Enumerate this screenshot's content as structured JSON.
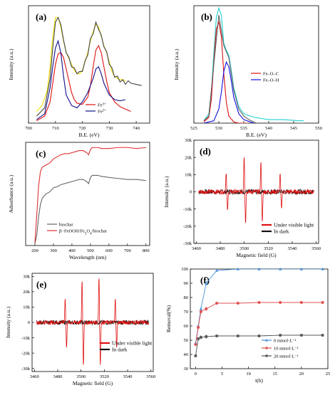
{
  "figure": {
    "background": "#ffffff"
  },
  "chart_data": [
    {
      "id": "a",
      "panel_label": "(a)",
      "type": "line",
      "xlabel": "B.E. (eV)",
      "ylabel": "Intensity (a.u.)",
      "xlim": [
        700,
        745
      ],
      "xticks": [
        700,
        710,
        720,
        730,
        740
      ],
      "ylim": [
        0,
        1
      ],
      "show_yticks": false,
      "legend": {
        "position": "bottom-right",
        "entries": [
          "Fe3+",
          "Fe2+"
        ]
      },
      "series": [
        {
          "key": "envelope",
          "color": "#f0e000",
          "x": [
            703,
            705,
            707,
            708,
            709,
            710,
            711,
            712,
            713,
            714,
            715,
            716,
            717,
            718,
            719,
            720,
            721,
            722,
            723,
            724,
            725,
            726,
            727,
            728,
            729,
            730,
            731,
            732,
            733,
            734,
            735,
            736
          ],
          "y": [
            0.1,
            0.15,
            0.28,
            0.48,
            0.74,
            0.9,
            0.9,
            0.82,
            0.7,
            0.6,
            0.55,
            0.5,
            0.45,
            0.42,
            0.42,
            0.45,
            0.52,
            0.6,
            0.7,
            0.78,
            0.84,
            0.82,
            0.74,
            0.66,
            0.6,
            0.52,
            0.44,
            0.4,
            0.38,
            0.37,
            0.37,
            0.36
          ]
        },
        {
          "name": "Fe3+",
          "color": "#e01010",
          "x": [
            703,
            706,
            708,
            709,
            710,
            711,
            712,
            713,
            714,
            715,
            716,
            717,
            718,
            720,
            722,
            723,
            724,
            725,
            726,
            727,
            728,
            729,
            730,
            732,
            734,
            736,
            738
          ],
          "y": [
            0.02,
            0.06,
            0.18,
            0.34,
            0.5,
            0.59,
            0.6,
            0.56,
            0.46,
            0.36,
            0.26,
            0.2,
            0.17,
            0.16,
            0.22,
            0.32,
            0.48,
            0.62,
            0.66,
            0.6,
            0.48,
            0.36,
            0.26,
            0.18,
            0.14,
            0.12,
            0.1
          ]
        },
        {
          "name": "Fe2+",
          "color": "#10108a",
          "x": [
            703,
            706,
            708,
            709,
            710,
            711,
            712,
            713,
            714,
            716,
            718,
            720,
            722,
            724,
            725,
            726,
            727,
            728,
            730,
            732,
            734,
            736
          ],
          "y": [
            0.03,
            0.08,
            0.3,
            0.48,
            0.64,
            0.7,
            0.6,
            0.4,
            0.24,
            0.15,
            0.13,
            0.18,
            0.26,
            0.38,
            0.46,
            0.48,
            0.42,
            0.34,
            0.24,
            0.2,
            0.19,
            0.2
          ]
        },
        {
          "key": "raw",
          "color": "#444444",
          "x": [
            703,
            706,
            708,
            709,
            710,
            711,
            712,
            713,
            714,
            715,
            716,
            717,
            718,
            719,
            720,
            721,
            722,
            723,
            724,
            725,
            726,
            727,
            728,
            729,
            730,
            731,
            732,
            733,
            734,
            735,
            736,
            737,
            738,
            740,
            742
          ],
          "y": [
            0.06,
            0.13,
            0.38,
            0.64,
            0.86,
            0.9,
            0.84,
            0.71,
            0.6,
            0.56,
            0.48,
            0.47,
            0.42,
            0.44,
            0.44,
            0.53,
            0.58,
            0.72,
            0.76,
            0.86,
            0.8,
            0.75,
            0.65,
            0.61,
            0.5,
            0.47,
            0.39,
            0.4,
            0.35,
            0.37,
            0.33,
            0.36,
            0.34,
            0.33,
            0.32
          ]
        }
      ]
    },
    {
      "id": "b",
      "panel_label": "(b)",
      "type": "line",
      "xlabel": "B.E. (eV)",
      "ylabel": "Intensity (a.u.)",
      "xlim": [
        525,
        550
      ],
      "xticks": [
        525,
        530,
        535,
        540,
        545,
        550
      ],
      "ylim": [
        0,
        1
      ],
      "show_yticks": false,
      "legend": {
        "position": "center-right",
        "entries": [
          "Fe–O–C",
          "Fe–O–H"
        ]
      },
      "series": [
        {
          "key": "envelope",
          "color": "#20d0d0",
          "x": [
            527,
            528,
            528.5,
            529,
            529.5,
            530,
            530.5,
            531,
            531.5,
            532,
            532.5,
            533,
            534,
            535,
            537,
            540,
            543,
            546,
            547
          ],
          "y": [
            0.02,
            0.08,
            0.25,
            0.6,
            0.9,
            0.98,
            0.92,
            0.68,
            0.62,
            0.58,
            0.45,
            0.3,
            0.14,
            0.08,
            0.05,
            0.03,
            0.03,
            0.02,
            0.02
          ]
        },
        {
          "name": "Fe–O–C",
          "color": "#e01010",
          "x": [
            527,
            528,
            528.5,
            529,
            529.5,
            530,
            530.5,
            531,
            531.5,
            532,
            533,
            534,
            536
          ],
          "y": [
            0.01,
            0.05,
            0.2,
            0.52,
            0.8,
            0.86,
            0.74,
            0.42,
            0.18,
            0.06,
            0.01,
            0.0,
            0.0
          ]
        },
        {
          "name": "Fe–O–H",
          "color": "#1010e0",
          "x": [
            527,
            529,
            530,
            530.5,
            531,
            531.5,
            532,
            532.5,
            533,
            534,
            535,
            537
          ],
          "y": [
            0.0,
            0.02,
            0.12,
            0.26,
            0.44,
            0.52,
            0.48,
            0.36,
            0.22,
            0.08,
            0.03,
            0.0
          ]
        },
        {
          "key": "raw",
          "color": "#606060",
          "x": [
            527,
            528,
            529,
            530,
            531,
            532,
            533,
            534,
            535,
            536,
            537,
            538,
            539,
            540,
            541,
            542,
            543,
            544,
            545,
            546,
            547
          ],
          "y": [
            0.02,
            0.06,
            0.5,
            0.92,
            0.66,
            0.56,
            0.28,
            0.12,
            0.06,
            0.03,
            0.01,
            -0.01,
            -0.02,
            -0.03,
            -0.02,
            -0.03,
            -0.02,
            -0.01,
            -0.01,
            0.0,
            0.0
          ]
        }
      ]
    },
    {
      "id": "c",
      "panel_label": "(c)",
      "type": "line",
      "xlabel": "Wavelength (nm)",
      "ylabel": "Adsorbance (a.u.)",
      "xlim": [
        150,
        820
      ],
      "xticks": [
        200,
        300,
        400,
        500,
        600,
        700,
        800
      ],
      "ylim": [
        0,
        1
      ],
      "show_yticks": false,
      "legend": {
        "position": "bottom-right",
        "entries": [
          "biochar",
          "β−FeOOH/Fe3O4/biochar"
        ]
      },
      "series": [
        {
          "name": "biochar",
          "color": "#666666",
          "x": [
            200,
            210,
            220,
            230,
            240,
            260,
            280,
            300,
            320,
            340,
            360,
            380,
            400,
            420,
            440,
            460,
            480,
            490,
            500,
            510,
            520,
            540,
            560,
            600,
            650,
            700,
            750,
            800
          ],
          "y": [
            0.02,
            0.1,
            0.28,
            0.4,
            0.46,
            0.5,
            0.52,
            0.56,
            0.57,
            0.59,
            0.6,
            0.61,
            0.62,
            0.63,
            0.64,
            0.64,
            0.62,
            0.6,
            0.66,
            0.68,
            0.68,
            0.68,
            0.67,
            0.66,
            0.65,
            0.64,
            0.64,
            0.63
          ]
        },
        {
          "name": "β−FeOOH/Fe3O4/biochar",
          "color": "#e03030",
          "x": [
            200,
            210,
            220,
            230,
            240,
            260,
            280,
            300,
            320,
            340,
            360,
            380,
            400,
            420,
            440,
            460,
            480,
            490,
            500,
            510,
            520,
            540,
            560,
            600,
            650,
            700,
            750,
            800
          ],
          "y": [
            0.03,
            0.3,
            0.58,
            0.72,
            0.76,
            0.78,
            0.8,
            0.84,
            0.86,
            0.88,
            0.89,
            0.89,
            0.9,
            0.91,
            0.92,
            0.92,
            0.9,
            0.88,
            0.93,
            0.95,
            0.95,
            0.95,
            0.94,
            0.94,
            0.95,
            0.95,
            0.94,
            0.95
          ]
        }
      ]
    },
    {
      "id": "d",
      "panel_label": "(d)",
      "type": "line",
      "xlabel": "Magnetic field (G)",
      "ylabel": "Intensity (a.u.)",
      "xlim": [
        3458,
        3562
      ],
      "xticks": [
        3460,
        3480,
        3500,
        3520,
        3540,
        3560
      ],
      "xtick_labels": [
        "3460",
        "3480",
        "3500",
        "3520",
        "3540",
        "3560"
      ],
      "ylim": [
        -30000,
        30000
      ],
      "yticks": [
        -30000,
        -20000,
        -10000,
        0,
        10000,
        20000,
        30000
      ],
      "ytick_labels": [
        "-30k",
        "-20k",
        "-10k",
        "0",
        "10k",
        "20k",
        "30k"
      ],
      "noise_amplitude": 1500,
      "legend": {
        "position": "bottom-right",
        "entries": [
          "Under visible light",
          "In dark"
        ]
      },
      "series": [
        {
          "name": "Under visible light",
          "color": "#e01010",
          "x": [
            3485.5,
            3500.5,
            3514.5,
            3530.5
          ],
          "peak_high": [
            11000,
            21000,
            18000,
            11000
          ],
          "peak_low": [
            -11000,
            -19000,
            -18000,
            -10000
          ]
        },
        {
          "name": "In dark",
          "color": "#111111",
          "x": [],
          "peak_high": [],
          "peak_low": []
        }
      ]
    },
    {
      "id": "e",
      "panel_label": "(e)",
      "type": "line",
      "xlabel": "Magnetic field (G)",
      "ylabel": "Intensity (a.u.)",
      "xlim": [
        3458,
        3562
      ],
      "xticks": [
        3460,
        3480,
        3500,
        3520,
        3540,
        3560
      ],
      "xtick_labels": [
        "3460",
        "3480",
        "3500",
        "3520",
        "3540",
        "3560"
      ],
      "ylim": [
        -32000,
        32000
      ],
      "yticks": [
        -30000,
        -20000,
        -10000,
        0,
        10000,
        20000,
        30000
      ],
      "ytick_labels": [
        "-30k",
        "-20k",
        "-10k",
        "0",
        "10k",
        "20k",
        "30k"
      ],
      "noise_amplitude": 1500,
      "legend": {
        "position": "bottom-right",
        "entries": [
          "Under visible light",
          "In dark"
        ]
      },
      "series": [
        {
          "name": "Under visible light",
          "color": "#e01010",
          "x": [
            3487,
            3501.5,
            3516,
            3530
          ],
          "peak_high": [
            16000,
            28000,
            30000,
            16000
          ],
          "peak_low": [
            -17000,
            -29000,
            -29000,
            -17000
          ]
        },
        {
          "name": "In dark",
          "color": "#111111",
          "x": [],
          "peak_high": [],
          "peak_low": []
        }
      ]
    },
    {
      "id": "f",
      "panel_label": "(f)",
      "type": "line",
      "xlabel": "t(h)",
      "ylabel": "Removal(%)",
      "xlim": [
        -1,
        25
      ],
      "xticks": [
        0,
        5,
        10,
        15,
        20,
        25
      ],
      "ylim": [
        30,
        100
      ],
      "yticks": [
        30,
        40,
        50,
        60,
        70,
        80,
        90,
        100
      ],
      "legend": {
        "position": "bottom-right",
        "entries": [
          "0    mmol·L⁻¹",
          "10  mmol·L⁻¹",
          "20  mmol·L⁻¹"
        ]
      },
      "series": [
        {
          "name": "0    mmol·L⁻¹",
          "color": "#4a90d9",
          "marker": "triangle",
          "x": [
            0,
            0.5,
            1,
            2,
            4,
            8,
            12,
            16,
            20,
            24
          ],
          "y": [
            48,
            60,
            72,
            90,
            99,
            100,
            100,
            100,
            100,
            100
          ]
        },
        {
          "name": "10  mmol·L⁻¹",
          "color": "#e05050",
          "marker": "circle",
          "x": [
            0,
            0.5,
            1,
            2,
            4,
            8,
            12,
            16,
            20,
            24
          ],
          "y": [
            47,
            59,
            70,
            72,
            76,
            76,
            76.5,
            76.5,
            76.5,
            76.5
          ]
        },
        {
          "name": "20  mmol·L⁻¹",
          "color": "#555555",
          "marker": "square",
          "x": [
            0,
            0.5,
            1,
            2,
            4,
            8,
            12,
            16,
            20,
            24
          ],
          "y": [
            39,
            51,
            52,
            52.5,
            53,
            53,
            53,
            53.5,
            53.5,
            53.5
          ]
        }
      ]
    }
  ]
}
